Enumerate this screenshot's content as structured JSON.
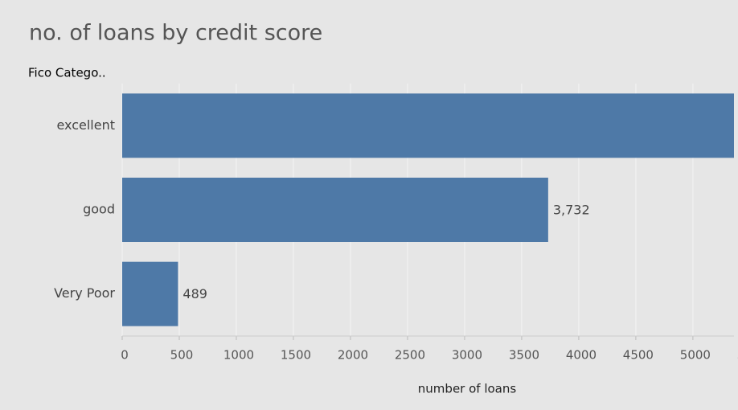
{
  "chart_data": {
    "type": "bar",
    "orientation": "horizontal",
    "title": "no. of loans by credit score",
    "row_header": "Fico Catego..",
    "x_label": "number of loans",
    "categories": [
      "excellent",
      "good",
      "Very Poor"
    ],
    "values": [
      5360,
      3732,
      489
    ],
    "value_labels": [
      null,
      "3,732",
      "489"
    ],
    "color": "#4e79a7",
    "xlim": [
      0,
      5360
    ],
    "xticks": [
      0,
      500,
      1000,
      1500,
      2000,
      2500,
      3000,
      3500,
      4000,
      4500,
      5000,
      5500
    ],
    "grid": true
  }
}
